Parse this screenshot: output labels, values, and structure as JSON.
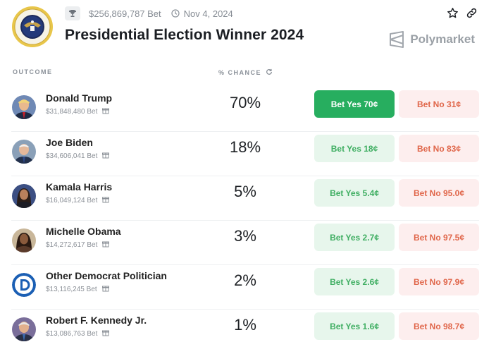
{
  "header": {
    "total_bet": "$256,869,787 Bet",
    "date": "Nov 4, 2024",
    "title": "Presidential Election Winner 2024",
    "brand": "Polymarket"
  },
  "columns": {
    "outcome": "OUTCOME",
    "chance": "% CHANCE"
  },
  "outcomes": [
    {
      "name": "Donald Trump",
      "volume": "$31,848,480 Bet",
      "chance": "70%",
      "yes": "Bet Yes 70¢",
      "no": "Bet No 31¢"
    },
    {
      "name": "Joe Biden",
      "volume": "$34,606,041 Bet",
      "chance": "18%",
      "yes": "Bet Yes 18¢",
      "no": "Bet No 83¢"
    },
    {
      "name": "Kamala Harris",
      "volume": "$16,049,124 Bet",
      "chance": "5%",
      "yes": "Bet Yes 5.4¢",
      "no": "Bet No 95.0¢"
    },
    {
      "name": "Michelle Obama",
      "volume": "$14,272,617 Bet",
      "chance": "3%",
      "yes": "Bet Yes 2.7¢",
      "no": "Bet No 97.5¢"
    },
    {
      "name": "Other Democrat Politician",
      "volume": "$13,116,245 Bet",
      "chance": "2%",
      "yes": "Bet Yes 2.6¢",
      "no": "Bet No 97.9¢"
    },
    {
      "name": "Robert F. Kennedy Jr.",
      "volume": "$13,086,763 Bet",
      "chance": "1%",
      "yes": "Bet Yes 1.6¢",
      "no": "Bet No 98.7¢"
    }
  ],
  "colors": {
    "yes_active": "#27ae5f",
    "yes_bg": "#e7f6ec",
    "no_bg": "#fdeeee",
    "no_text": "#e0664a"
  },
  "icons": [
    "presidential-seal-icon",
    "trophy-icon",
    "clock-icon",
    "star-icon",
    "link-icon",
    "polymarket-logo-icon",
    "refresh-icon",
    "gift-icon",
    "democrat-logo-icon"
  ]
}
